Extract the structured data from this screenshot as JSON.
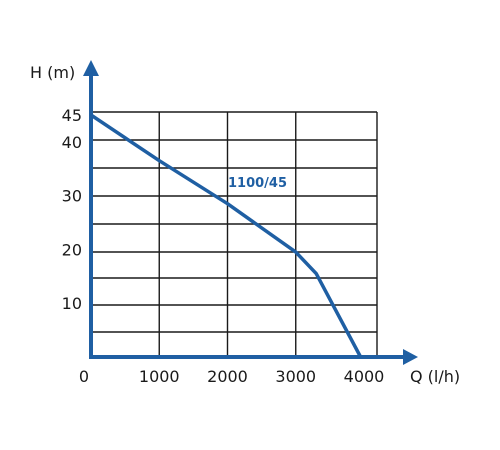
{
  "chart_data": {
    "type": "line",
    "title": "",
    "xlabel": "Q (l/h)",
    "ylabel": "H (m)",
    "xlim": [
      0,
      4000
    ],
    "ylim": [
      0,
      45
    ],
    "x_ticks": [
      0,
      1000,
      2000,
      3000,
      4000
    ],
    "y_ticks": [
      10,
      20,
      30,
      40,
      45
    ],
    "x_tick_labels": [
      "0",
      "1000",
      "2000",
      "3000",
      "4000"
    ],
    "y_tick_labels": [
      "10",
      "20",
      "30",
      "40",
      "45"
    ],
    "grid": true,
    "series": [
      {
        "name": "1100/45",
        "color": "#1f5fa3",
        "points": [
          {
            "x": 0,
            "y": 45
          },
          {
            "x": 1000,
            "y": 36.5
          },
          {
            "x": 2000,
            "y": 28.5
          },
          {
            "x": 3000,
            "y": 19.5
          },
          {
            "x": 3300,
            "y": 15.5
          },
          {
            "x": 3950,
            "y": 0
          }
        ]
      }
    ]
  },
  "colors": {
    "axis": "#1f5fa3",
    "grid": "#1a1a1a",
    "series": "#1f5fa3"
  }
}
